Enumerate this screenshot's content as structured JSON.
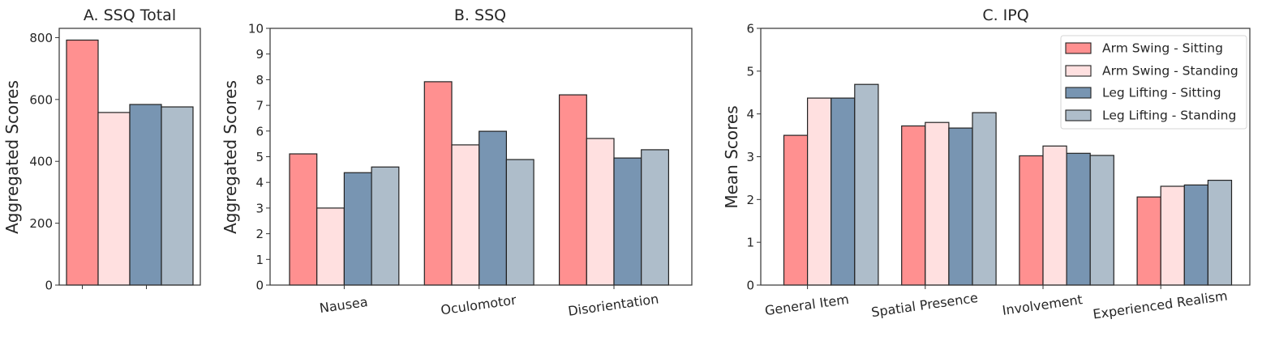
{
  "series": [
    {
      "name": "Arm Swing - Sitting",
      "color": "#FF9090"
    },
    {
      "name": "Arm Swing - Standing",
      "color": "#FFE0E0"
    },
    {
      "name": "Leg Lifting - Sitting",
      "color": "#7895B2"
    },
    {
      "name": "Leg Lifting - Standing",
      "color": "#AEBDCA"
    }
  ],
  "chart_data": [
    {
      "type": "bar",
      "title": "A. SSQ Total",
      "xlabel": "",
      "ylabel": "Aggregated Scores",
      "ylim": [
        0,
        830
      ],
      "yticks": [
        0,
        200,
        400,
        600,
        800
      ],
      "categories": [
        ""
      ],
      "series": [
        {
          "name": "Arm Swing - Sitting",
          "values": [
            792
          ]
        },
        {
          "name": "Arm Swing - Standing",
          "values": [
            558
          ]
        },
        {
          "name": "Leg Lifting - Sitting",
          "values": [
            584
          ]
        },
        {
          "name": "Leg Lifting - Standing",
          "values": [
            576
          ]
        }
      ],
      "legend": "none",
      "grid": false
    },
    {
      "type": "bar",
      "title": "B. SSQ",
      "xlabel": "",
      "ylabel": "Aggregated Scores",
      "ylim": [
        0,
        10
      ],
      "yticks": [
        0,
        1,
        2,
        3,
        4,
        5,
        6,
        7,
        8,
        9,
        10
      ],
      "categories": [
        "Nausea",
        "Oculomotor",
        "Disorientation"
      ],
      "series": [
        {
          "name": "Arm Swing - Sitting",
          "values": [
            5.11,
            7.92,
            7.41
          ]
        },
        {
          "name": "Arm Swing - Standing",
          "values": [
            3.0,
            5.46,
            5.71
          ]
        },
        {
          "name": "Leg Lifting - Sitting",
          "values": [
            4.38,
            5.99,
            4.95
          ]
        },
        {
          "name": "Leg Lifting - Standing",
          "values": [
            4.6,
            4.89,
            5.27
          ]
        }
      ],
      "legend": "none",
      "grid": false
    },
    {
      "type": "bar",
      "title": "C. IPQ",
      "xlabel": "",
      "ylabel": "Mean Scores",
      "ylim": [
        0,
        6
      ],
      "yticks": [
        0,
        1,
        2,
        3,
        4,
        5,
        6
      ],
      "categories": [
        "General Item",
        "Spatial Presence",
        "Involvement",
        "Experienced Realism"
      ],
      "series": [
        {
          "name": "Arm Swing - Sitting",
          "values": [
            3.5,
            3.72,
            3.02,
            2.06
          ]
        },
        {
          "name": "Arm Swing - Standing",
          "values": [
            4.37,
            3.8,
            3.25,
            2.31
          ]
        },
        {
          "name": "Leg Lifting - Sitting",
          "values": [
            4.37,
            3.67,
            3.08,
            2.34
          ]
        },
        {
          "name": "Leg Lifting - Standing",
          "values": [
            4.69,
            4.03,
            3.03,
            2.45
          ]
        }
      ],
      "legend": "top-right",
      "grid": false
    }
  ]
}
